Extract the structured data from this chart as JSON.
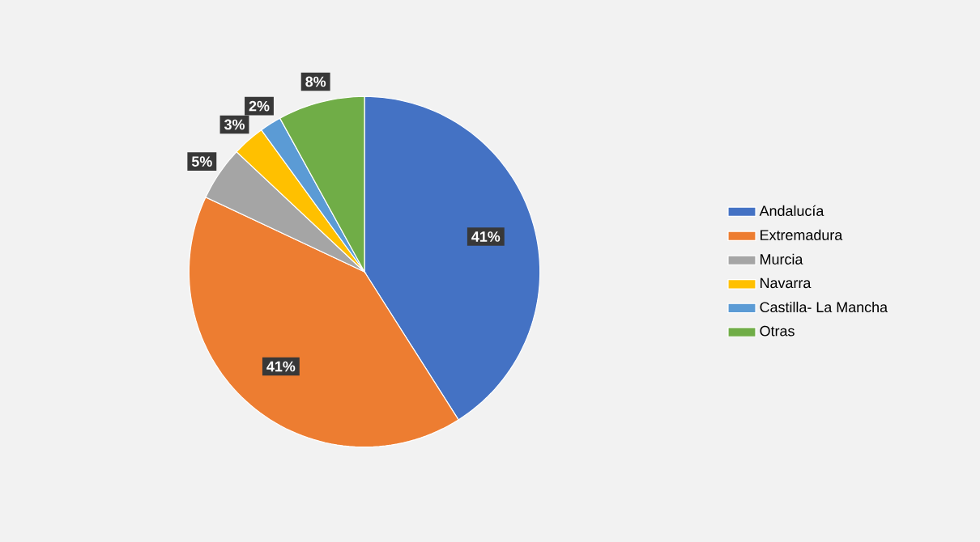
{
  "chart_data": {
    "type": "pie",
    "categories": [
      "Andalucía",
      "Extremadura",
      "Murcia",
      "Navarra",
      "Castilla- La Mancha",
      "Otras"
    ],
    "values": [
      41,
      41,
      5,
      3,
      2,
      8
    ],
    "value_labels": [
      "41%",
      "41%",
      "5%",
      "3%",
      "2%",
      "8%"
    ],
    "colors": [
      "#4472c4",
      "#ed7d31",
      "#a5a5a5",
      "#ffc000",
      "#5b9bd5",
      "#70ad47"
    ],
    "legend": "right"
  }
}
